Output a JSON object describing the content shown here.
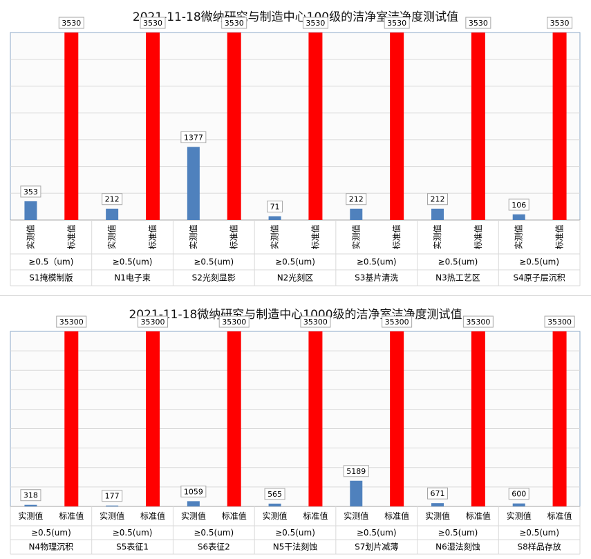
{
  "chart_data": [
    {
      "type": "bar",
      "title": "2021-11-18微纳研究与制造中心100级的洁净室洁净度测试值",
      "series_labels": [
        "实测值",
        "标准值"
      ],
      "colors": {
        "measured": "#4F81BD",
        "standard": "#FF0000"
      },
      "groups": [
        {
          "condition": "≥0.5（um)",
          "area": "S1掩模制版",
          "measured": 353,
          "standard": 3530
        },
        {
          "condition": "≥0.5(um)",
          "area": "N1电子束",
          "measured": 212,
          "standard": 3530
        },
        {
          "condition": "≥0.5(um)",
          "area": "S2光刻显影",
          "measured": 1377,
          "standard": 3530
        },
        {
          "condition": "≥0.5(um)",
          "area": "N2光刻区",
          "measured": 71,
          "standard": 3530
        },
        {
          "condition": "≥0.5(um)",
          "area": "S3基片清洗",
          "measured": 212,
          "standard": 3530
        },
        {
          "condition": "≥0.5(um)",
          "area": "N3热工艺区",
          "measured": 212,
          "standard": 3530
        },
        {
          "condition": "≥0.5(um)",
          "area": "S4原子层沉积",
          "measured": 106,
          "standard": 3530
        }
      ],
      "ylim": [
        0,
        3530
      ],
      "grid": true,
      "label_orientation": "vertical"
    },
    {
      "type": "bar",
      "title": "2021-11-18微纳研究与制造中心1000级的洁净室洁净度测试值",
      "series_labels": [
        "实测值",
        "标准值"
      ],
      "colors": {
        "measured": "#4F81BD",
        "standard": "#FF0000"
      },
      "groups": [
        {
          "condition": "≥0.5(um)",
          "area": "N4物理沉积",
          "measured": 318,
          "standard": 35300
        },
        {
          "condition": "≥0.5(um)",
          "area": "S5表征1",
          "measured": 177,
          "standard": 35300
        },
        {
          "condition": "≥0.5(um)",
          "area": "S6表征2",
          "measured": 1059,
          "standard": 35300
        },
        {
          "condition": "≥0.5(um)",
          "area": "N5干法刻蚀",
          "measured": 565,
          "standard": 35300
        },
        {
          "condition": "≥0.5(um)",
          "area": "S7划片减薄",
          "measured": 5189,
          "standard": 35300
        },
        {
          "condition": "≥0.5(um)",
          "area": "N6湿法刻蚀",
          "measured": 671,
          "standard": 35300
        },
        {
          "condition": "≥0.5(um)",
          "area": "S8样品存放",
          "measured": 600,
          "standard": 35300
        }
      ],
      "ylim": [
        0,
        35300
      ],
      "grid": true,
      "label_orientation": "horizontal"
    }
  ]
}
